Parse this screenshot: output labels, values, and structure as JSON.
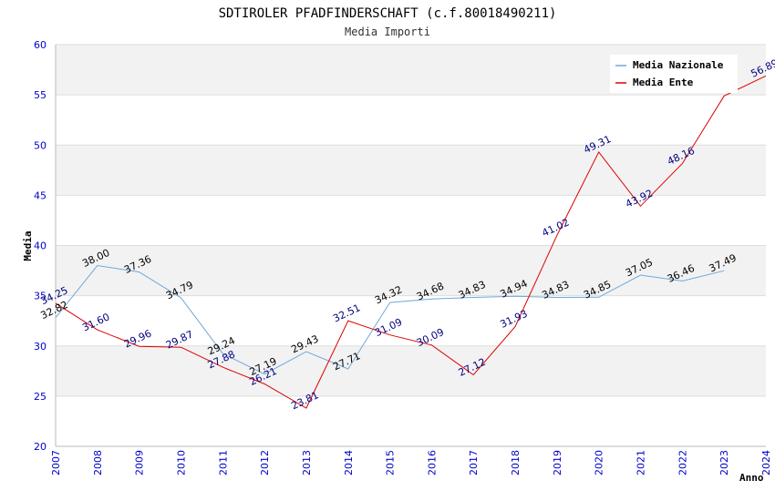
{
  "chart_data": {
    "type": "line",
    "title": "SDTIROLER PFADFINDERSCHAFT (c.f.80018490211)",
    "subtitle": "Media Importi",
    "xlabel": "Anno",
    "ylabel": "Media",
    "ylim": [
      20,
      60
    ],
    "yticks": [
      "20",
      "25",
      "30",
      "35",
      "40",
      "45",
      "50",
      "55",
      "60"
    ],
    "categories": [
      "2007",
      "2008",
      "2009",
      "2010",
      "2011",
      "2012",
      "2013",
      "2014",
      "2015",
      "2016",
      "2017",
      "2018",
      "2019",
      "2020",
      "2021",
      "2022",
      "2023",
      "2024"
    ],
    "legend_position": "top-right",
    "series": [
      {
        "name": "Media Nazionale",
        "color": "#6fa8dc",
        "values": [
          32.82,
          38.0,
          37.36,
          34.79,
          29.24,
          27.19,
          29.43,
          27.71,
          34.32,
          34.68,
          34.83,
          34.94,
          34.83,
          34.85,
          37.05,
          36.46,
          37.49,
          null
        ],
        "labels": [
          "32.82",
          "38.00",
          "37.36",
          "34.79",
          "29.24",
          "27.19",
          "29.43",
          "27.71",
          "34.32",
          "34.68",
          "34.83",
          "34.94",
          "34.83",
          "34.85",
          "37.05",
          "36.46",
          "37.49",
          ""
        ]
      },
      {
        "name": "Media Ente",
        "color": "#dd0000",
        "values": [
          34.25,
          31.6,
          29.96,
          29.87,
          27.88,
          26.21,
          23.81,
          32.51,
          31.09,
          30.09,
          27.12,
          31.93,
          41.02,
          49.31,
          43.92,
          48.16,
          54.89,
          56.89
        ],
        "labels": [
          "34.25",
          "31.60",
          "29.96",
          "29.87",
          "27.88",
          "26.21",
          "23.81",
          "32.51",
          "31.09",
          "30.09",
          "27.12",
          "31.93",
          "41.02",
          "49.31",
          "43.92",
          "48.16",
          "",
          "56.89"
        ]
      }
    ]
  }
}
